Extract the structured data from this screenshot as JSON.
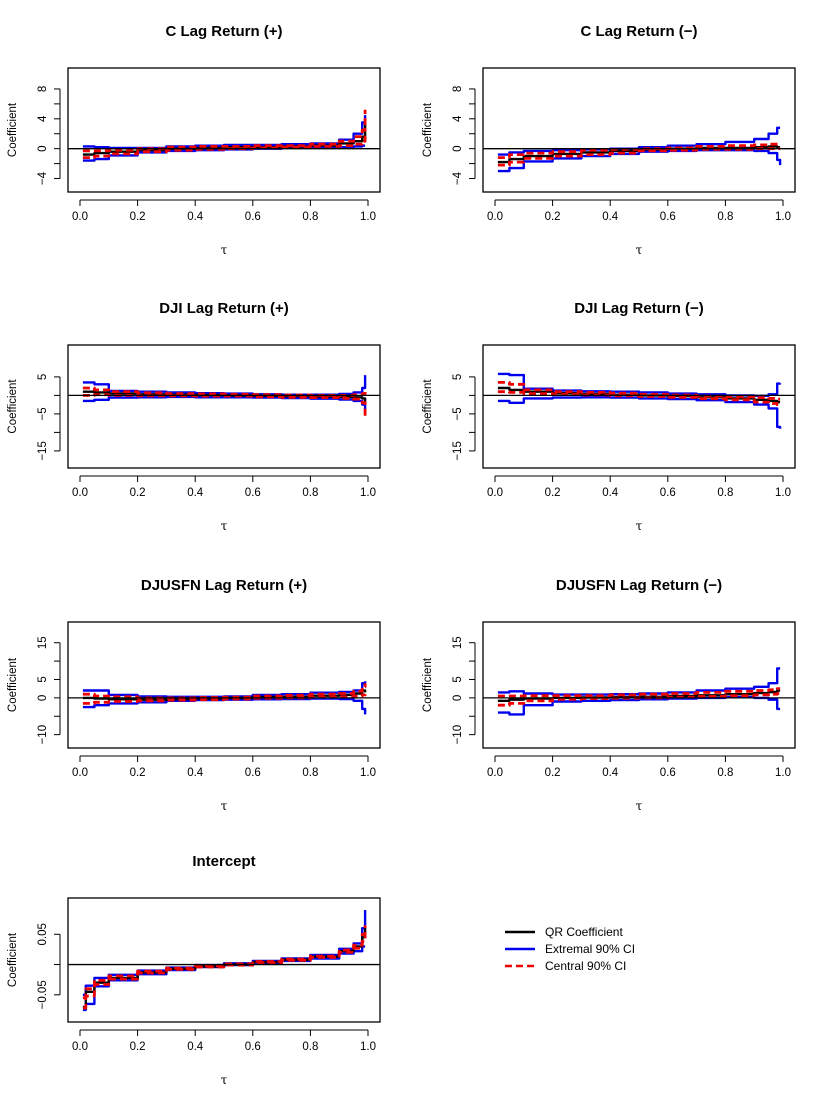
{
  "colors": {
    "qr": "#000000",
    "extremal": "#0000ee",
    "central": "#ee0000"
  },
  "legend": {
    "placement": "right of Intercept panel",
    "entries": [
      {
        "label": "QR Coefficient",
        "color": "#000000",
        "style": "solid"
      },
      {
        "label": "Extremal 90% CI",
        "color": "#0000ee",
        "style": "solid"
      },
      {
        "label": "Central 90% CI",
        "color": "#ee0000",
        "style": "dashed"
      }
    ]
  },
  "chart_data": [
    {
      "type": "line",
      "title": "C Lag Return (+)",
      "xlabel": "τ",
      "ylabel": "Coefficient",
      "xlim": [
        0,
        1
      ],
      "ylim": [
        -5,
        10
      ],
      "xticks": [
        0.0,
        0.2,
        0.4,
        0.6,
        0.8,
        1.0
      ],
      "yticks": [
        -4,
        0,
        4,
        8
      ],
      "hline": 0,
      "x": [
        0.01,
        0.05,
        0.1,
        0.2,
        0.3,
        0.4,
        0.5,
        0.6,
        0.7,
        0.8,
        0.9,
        0.95,
        0.98,
        0.99
      ],
      "series": [
        {
          "role": "qr",
          "values": [
            -0.8,
            -0.6,
            -0.4,
            -0.2,
            0.0,
            0.1,
            0.2,
            0.2,
            0.3,
            0.4,
            0.7,
            1.0,
            1.6,
            4.0
          ]
        },
        {
          "role": "extremal_upper",
          "values": [
            0.3,
            0.2,
            0.1,
            0.1,
            0.3,
            0.4,
            0.5,
            0.5,
            0.6,
            0.7,
            1.2,
            2.0,
            3.5,
            4.5
          ]
        },
        {
          "role": "extremal_lower",
          "values": [
            -1.6,
            -1.4,
            -0.9,
            -0.5,
            -0.3,
            -0.2,
            -0.1,
            0.0,
            0.1,
            0.1,
            0.2,
            0.3,
            0.4,
            0.4
          ]
        },
        {
          "role": "central_upper",
          "values": [
            -0.3,
            -0.3,
            -0.2,
            0.0,
            0.2,
            0.3,
            0.3,
            0.4,
            0.4,
            0.6,
            1.0,
            1.6,
            2.5,
            5.2
          ]
        },
        {
          "role": "central_lower",
          "values": [
            -1.2,
            -1.0,
            -0.7,
            -0.4,
            -0.2,
            -0.1,
            0.0,
            0.1,
            0.2,
            0.3,
            0.4,
            0.6,
            1.0,
            2.8
          ]
        }
      ]
    },
    {
      "type": "line",
      "title": "C Lag Return (−)",
      "xlabel": "τ",
      "ylabel": "Coefficient",
      "xlim": [
        0,
        1
      ],
      "ylim": [
        -5,
        10
      ],
      "xticks": [
        0.0,
        0.2,
        0.4,
        0.6,
        0.8,
        1.0
      ],
      "yticks": [
        -4,
        0,
        4,
        8
      ],
      "hline": 0,
      "x": [
        0.01,
        0.05,
        0.1,
        0.2,
        0.3,
        0.4,
        0.5,
        0.6,
        0.7,
        0.8,
        0.9,
        0.95,
        0.98,
        0.99
      ],
      "series": [
        {
          "role": "qr",
          "values": [
            -1.8,
            -1.4,
            -1.0,
            -0.7,
            -0.5,
            -0.3,
            -0.1,
            0.0,
            0.1,
            0.1,
            0.2,
            0.3,
            0.2,
            0.2
          ]
        },
        {
          "role": "extremal_upper",
          "values": [
            -0.8,
            -0.5,
            -0.3,
            -0.2,
            -0.1,
            0.0,
            0.2,
            0.4,
            0.6,
            0.9,
            1.3,
            2.0,
            2.8,
            2.8
          ]
        },
        {
          "role": "extremal_lower",
          "values": [
            -3.0,
            -2.6,
            -1.7,
            -1.3,
            -1.0,
            -0.7,
            -0.4,
            -0.3,
            -0.2,
            -0.2,
            -0.3,
            -0.6,
            -1.5,
            -2.2
          ]
        },
        {
          "role": "central_upper",
          "values": [
            -1.2,
            -0.8,
            -0.6,
            -0.4,
            -0.2,
            -0.1,
            0.0,
            0.1,
            0.3,
            0.4,
            0.5,
            0.6,
            0.6,
            0.6
          ]
        },
        {
          "role": "central_lower",
          "values": [
            -2.2,
            -1.8,
            -1.3,
            -1.0,
            -0.8,
            -0.6,
            -0.3,
            -0.2,
            -0.1,
            -0.1,
            0.0,
            0.0,
            0.0,
            0.0
          ]
        }
      ]
    },
    {
      "type": "line",
      "title": "DJI Lag Return (+)",
      "xlabel": "τ",
      "ylabel": "Coefficient",
      "xlim": [
        0,
        1
      ],
      "ylim": [
        -18,
        12
      ],
      "xticks": [
        0.0,
        0.2,
        0.4,
        0.6,
        0.8,
        1.0
      ],
      "yticks": [
        -15,
        -5,
        5
      ],
      "hline": 0,
      "x": [
        0.01,
        0.05,
        0.1,
        0.2,
        0.3,
        0.4,
        0.5,
        0.6,
        0.7,
        0.8,
        0.9,
        0.95,
        0.98,
        0.99
      ],
      "series": [
        {
          "role": "qr",
          "values": [
            1.0,
            0.8,
            0.5,
            0.3,
            0.2,
            0.1,
            0.0,
            -0.1,
            -0.2,
            -0.3,
            -0.4,
            -0.5,
            -0.8,
            -2.0
          ]
        },
        {
          "role": "extremal_upper",
          "values": [
            3.5,
            3.0,
            1.2,
            1.0,
            0.8,
            0.6,
            0.5,
            0.3,
            0.2,
            0.2,
            0.4,
            0.8,
            2.0,
            5.5
          ]
        },
        {
          "role": "extremal_lower",
          "values": [
            -1.5,
            -1.2,
            -0.6,
            -0.5,
            -0.4,
            -0.5,
            -0.5,
            -0.6,
            -0.7,
            -0.9,
            -1.1,
            -1.5,
            -2.5,
            -4.5
          ]
        },
        {
          "role": "central_upper",
          "values": [
            2.0,
            1.5,
            1.0,
            0.7,
            0.5,
            0.4,
            0.3,
            0.2,
            0.1,
            0.0,
            0.0,
            0.2,
            0.5,
            1.0
          ]
        },
        {
          "role": "central_lower",
          "values": [
            0.0,
            0.2,
            0.0,
            -0.1,
            -0.1,
            -0.2,
            -0.2,
            -0.4,
            -0.5,
            -0.6,
            -0.8,
            -1.0,
            -2.0,
            -6.0
          ]
        }
      ]
    },
    {
      "type": "line",
      "title": "DJI Lag Return (−)",
      "xlabel": "τ",
      "ylabel": "Coefficient",
      "xlim": [
        0,
        1
      ],
      "ylim": [
        -18,
        12
      ],
      "xticks": [
        0.0,
        0.2,
        0.4,
        0.6,
        0.8,
        1.0
      ],
      "yticks": [
        -15,
        -5,
        5
      ],
      "hline": 0,
      "x": [
        0.01,
        0.05,
        0.1,
        0.2,
        0.3,
        0.4,
        0.5,
        0.6,
        0.7,
        0.8,
        0.9,
        0.95,
        0.98,
        0.99
      ],
      "series": [
        {
          "role": "qr",
          "values": [
            2.0,
            1.5,
            1.0,
            0.6,
            0.4,
            0.2,
            0.0,
            -0.2,
            -0.5,
            -0.8,
            -1.2,
            -1.5,
            -1.8,
            -1.8
          ]
        },
        {
          "role": "extremal_upper",
          "values": [
            5.8,
            5.5,
            1.8,
            1.3,
            1.1,
            1.0,
            0.8,
            0.5,
            0.3,
            0.0,
            -0.1,
            0.3,
            3.2,
            3.3
          ]
        },
        {
          "role": "extremal_lower",
          "values": [
            -1.5,
            -2.0,
            -0.8,
            -0.6,
            -0.5,
            -0.6,
            -0.8,
            -1.0,
            -1.3,
            -1.8,
            -2.5,
            -3.5,
            -8.5,
            -9.0
          ]
        },
        {
          "role": "central_upper",
          "values": [
            3.5,
            3.0,
            1.5,
            1.0,
            0.8,
            0.6,
            0.3,
            0.1,
            -0.2,
            -0.4,
            -0.6,
            -0.8,
            -1.0,
            -1.0
          ]
        },
        {
          "role": "central_lower",
          "values": [
            1.0,
            0.8,
            0.5,
            0.3,
            0.1,
            -0.1,
            -0.3,
            -0.5,
            -0.9,
            -1.2,
            -1.8,
            -2.2,
            -2.5,
            -2.5
          ]
        }
      ]
    },
    {
      "type": "line",
      "title": "DJUSFN Lag Return (+)",
      "xlabel": "τ",
      "ylabel": "Coefficient",
      "xlim": [
        0,
        1
      ],
      "ylim": [
        -12,
        19
      ],
      "xticks": [
        0.0,
        0.2,
        0.4,
        0.6,
        0.8,
        1.0
      ],
      "yticks": [
        -10,
        0,
        5,
        15
      ],
      "hline": 0,
      "x": [
        0.01,
        0.05,
        0.1,
        0.2,
        0.3,
        0.4,
        0.5,
        0.6,
        0.7,
        0.8,
        0.9,
        0.95,
        0.98,
        0.99
      ],
      "series": [
        {
          "role": "qr",
          "values": [
            0.0,
            -0.2,
            -0.4,
            -0.5,
            -0.3,
            -0.2,
            0.0,
            0.2,
            0.3,
            0.6,
            0.8,
            1.2,
            2.0,
            1.5
          ]
        },
        {
          "role": "extremal_upper",
          "values": [
            2.0,
            2.0,
            0.8,
            0.4,
            0.3,
            0.3,
            0.4,
            0.8,
            1.0,
            1.4,
            1.6,
            2.0,
            4.0,
            4.5
          ]
        },
        {
          "role": "extremal_lower",
          "values": [
            -2.5,
            -2.0,
            -1.5,
            -1.2,
            -0.8,
            -0.6,
            -0.5,
            -0.4,
            -0.3,
            -0.2,
            -0.3,
            -0.8,
            -3.0,
            -4.5
          ]
        },
        {
          "role": "central_upper",
          "values": [
            1.0,
            0.5,
            0.3,
            0.0,
            0.0,
            0.1,
            0.2,
            0.5,
            0.7,
            1.0,
            1.2,
            1.8,
            3.0,
            4.0
          ]
        },
        {
          "role": "central_lower",
          "values": [
            -1.5,
            -1.2,
            -1.0,
            -0.8,
            -0.6,
            -0.5,
            -0.3,
            -0.1,
            0.0,
            0.2,
            0.3,
            0.5,
            0.8,
            1.0
          ]
        }
      ]
    },
    {
      "type": "line",
      "title": "DJUSFN Lag Return (−)",
      "xlabel": "τ",
      "ylabel": "Coefficient",
      "xlim": [
        0,
        1
      ],
      "ylim": [
        -12,
        19
      ],
      "xticks": [
        0.0,
        0.2,
        0.4,
        0.6,
        0.8,
        1.0
      ],
      "yticks": [
        -10,
        0,
        5,
        15
      ],
      "hline": 0,
      "x": [
        0.01,
        0.05,
        0.1,
        0.2,
        0.3,
        0.4,
        0.5,
        0.6,
        0.7,
        0.8,
        0.9,
        0.95,
        0.98,
        0.99
      ],
      "series": [
        {
          "role": "qr",
          "values": [
            -0.8,
            -0.5,
            -0.2,
            0.0,
            0.1,
            0.2,
            0.3,
            0.5,
            0.7,
            1.0,
            1.3,
            1.6,
            2.0,
            2.0
          ]
        },
        {
          "role": "extremal_upper",
          "values": [
            1.5,
            1.8,
            1.2,
            0.9,
            0.9,
            1.0,
            1.2,
            1.5,
            2.0,
            2.5,
            3.0,
            4.0,
            8.0,
            8.0
          ]
        },
        {
          "role": "extremal_lower",
          "values": [
            -4.0,
            -4.5,
            -2.0,
            -1.0,
            -0.8,
            -0.6,
            -0.4,
            -0.2,
            0.0,
            0.2,
            0.0,
            -0.5,
            -3.0,
            -3.0
          ]
        },
        {
          "role": "central_upper",
          "values": [
            0.5,
            0.5,
            0.6,
            0.6,
            0.6,
            0.8,
            1.0,
            1.2,
            1.5,
            1.8,
            2.0,
            2.2,
            2.5,
            2.5
          ]
        },
        {
          "role": "central_lower",
          "values": [
            -2.0,
            -1.5,
            -0.8,
            -0.4,
            -0.2,
            -0.1,
            0.0,
            0.2,
            0.4,
            0.6,
            0.8,
            1.0,
            1.2,
            1.2
          ]
        }
      ]
    },
    {
      "type": "line",
      "title": "Intercept",
      "xlabel": "τ",
      "ylabel": "Coefficient",
      "xlim": [
        0,
        1
      ],
      "ylim": [
        -0.085,
        0.1
      ],
      "xticks": [
        0.0,
        0.2,
        0.4,
        0.6,
        0.8,
        1.0
      ],
      "yticks": [
        -0.05,
        0.05
      ],
      "hline": 0,
      "x": [
        0.01,
        0.02,
        0.05,
        0.1,
        0.2,
        0.3,
        0.4,
        0.5,
        0.6,
        0.7,
        0.8,
        0.9,
        0.95,
        0.98,
        0.99
      ],
      "series": [
        {
          "role": "qr",
          "values": [
            -0.07,
            -0.045,
            -0.03,
            -0.022,
            -0.013,
            -0.007,
            -0.003,
            0.0,
            0.004,
            0.008,
            0.013,
            0.022,
            0.03,
            0.045,
            0.06
          ]
        },
        {
          "role": "extremal_upper",
          "values": [
            -0.05,
            -0.035,
            -0.022,
            -0.017,
            -0.01,
            -0.005,
            -0.001,
            0.002,
            0.006,
            0.01,
            0.016,
            0.026,
            0.035,
            0.06,
            0.09
          ]
        },
        {
          "role": "extremal_lower",
          "values": [
            -0.075,
            -0.065,
            -0.036,
            -0.026,
            -0.016,
            -0.009,
            -0.004,
            -0.001,
            0.002,
            0.006,
            0.01,
            0.018,
            0.022,
            0.03,
            0.03
          ]
        },
        {
          "role": "central_upper",
          "values": [
            -0.055,
            -0.04,
            -0.026,
            -0.019,
            -0.011,
            -0.006,
            -0.002,
            0.001,
            0.005,
            0.009,
            0.014,
            0.024,
            0.032,
            0.05,
            0.065
          ]
        },
        {
          "role": "central_lower",
          "values": [
            -0.072,
            -0.052,
            -0.033,
            -0.024,
            -0.014,
            -0.008,
            -0.004,
            -0.001,
            0.003,
            0.007,
            0.012,
            0.02,
            0.027,
            0.038,
            0.048
          ]
        }
      ]
    }
  ]
}
